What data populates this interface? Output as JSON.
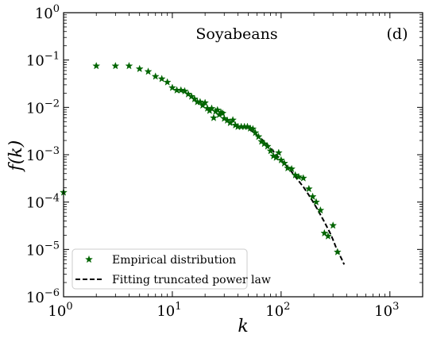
{
  "chart_data": {
    "type": "scatter",
    "x_scale": "log",
    "y_scale": "log",
    "xlim": [
      1,
      2000
    ],
    "ylim": [
      1e-06,
      1
    ],
    "xlabel": "k",
    "ylabel": "f(k)",
    "annotations": {
      "title": "Soyabeans",
      "panel": "(d)"
    },
    "x_ticks": [
      {
        "value": 1,
        "base": "10",
        "exp": "0"
      },
      {
        "value": 10,
        "base": "10",
        "exp": "1"
      },
      {
        "value": 100,
        "base": "10",
        "exp": "2"
      },
      {
        "value": 1000,
        "base": "10",
        "exp": "3"
      }
    ],
    "y_ticks": [
      {
        "value": 1e-06,
        "base": "10",
        "exp": "−6"
      },
      {
        "value": 1e-05,
        "base": "10",
        "exp": "−5"
      },
      {
        "value": 0.0001,
        "base": "10",
        "exp": "−4"
      },
      {
        "value": 0.001,
        "base": "10",
        "exp": "−3"
      },
      {
        "value": 0.01,
        "base": "10",
        "exp": "−2"
      },
      {
        "value": 0.1,
        "base": "10",
        "exp": "−1"
      },
      {
        "value": 1,
        "base": "10",
        "exp": "0"
      }
    ],
    "legend_position": "lower-left",
    "series": [
      {
        "name": "Empirical distribution",
        "kind": "scatter",
        "marker": "star",
        "color": "#006400",
        "points": [
          [
            1,
            0.00016
          ],
          [
            2,
            0.075
          ],
          [
            3,
            0.075
          ],
          [
            4,
            0.075
          ],
          [
            5,
            0.065
          ],
          [
            6,
            0.057
          ],
          [
            7,
            0.045
          ],
          [
            8,
            0.04
          ],
          [
            9,
            0.034
          ],
          [
            10,
            0.026
          ],
          [
            11,
            0.023
          ],
          [
            12,
            0.023
          ],
          [
            13,
            0.022
          ],
          [
            14,
            0.019
          ],
          [
            15,
            0.017
          ],
          [
            16,
            0.015
          ],
          [
            17,
            0.013
          ],
          [
            18,
            0.013
          ],
          [
            19,
            0.011
          ],
          [
            20,
            0.0125
          ],
          [
            21,
            0.0095
          ],
          [
            22,
            0.0085
          ],
          [
            23,
            0.0095
          ],
          [
            24,
            0.006
          ],
          [
            25,
            0.0082
          ],
          [
            26,
            0.0088
          ],
          [
            27,
            0.007
          ],
          [
            28,
            0.0078
          ],
          [
            29,
            0.0075
          ],
          [
            30,
            0.0058
          ],
          [
            32,
            0.0053
          ],
          [
            34,
            0.0047
          ],
          [
            36,
            0.0054
          ],
          [
            38,
            0.0042
          ],
          [
            40,
            0.0039
          ],
          [
            43,
            0.0039
          ],
          [
            46,
            0.0039
          ],
          [
            49,
            0.0039
          ],
          [
            52,
            0.0036
          ],
          [
            55,
            0.0035
          ],
          [
            58,
            0.0029
          ],
          [
            62,
            0.0024
          ],
          [
            66,
            0.0019
          ],
          [
            70,
            0.0017
          ],
          [
            75,
            0.0015
          ],
          [
            80,
            0.0012
          ],
          [
            85,
            0.00094
          ],
          [
            90,
            0.00087
          ],
          [
            95,
            0.0011
          ],
          [
            100,
            0.00077
          ],
          [
            107,
            0.00066
          ],
          [
            115,
            0.00052
          ],
          [
            125,
            0.0005
          ],
          [
            135,
            0.00037
          ],
          [
            145,
            0.00034
          ],
          [
            160,
            0.00032
          ],
          [
            180,
            0.00019
          ],
          [
            195,
            0.00013
          ],
          [
            210,
            0.0001
          ],
          [
            230,
            6.7e-05
          ],
          [
            250,
            2.2e-05
          ],
          [
            270,
            1.9e-05
          ],
          [
            300,
            3.2e-05
          ],
          [
            330,
            8.8e-06
          ]
        ]
      },
      {
        "name": "Fitting truncated power law",
        "kind": "line",
        "style": "dashed",
        "color": "#000000",
        "points": [
          [
            45,
            0.0039
          ],
          [
            50,
            0.0036
          ],
          [
            60,
            0.0026
          ],
          [
            70,
            0.0019
          ],
          [
            80,
            0.0014
          ],
          [
            90,
            0.001
          ],
          [
            100,
            0.00077
          ],
          [
            120,
            0.00049
          ],
          [
            140,
            0.00031
          ],
          [
            160,
            0.00021
          ],
          [
            180,
            0.00014
          ],
          [
            200,
            9.5e-05
          ],
          [
            220,
            6.5e-05
          ],
          [
            250,
            3.8e-05
          ],
          [
            280,
            2.3e-05
          ],
          [
            300,
            1.6e-05
          ],
          [
            320,
            1.1e-05
          ],
          [
            340,
            8.2e-06
          ],
          [
            360,
            6.3e-06
          ],
          [
            380,
            4.8e-06
          ]
        ]
      }
    ]
  }
}
